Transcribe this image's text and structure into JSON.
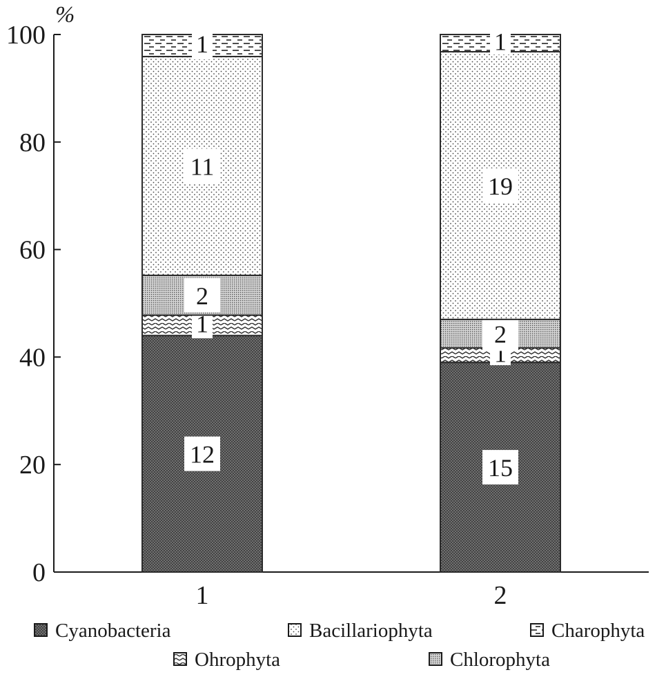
{
  "chart_data": {
    "type": "bar",
    "stacked": true,
    "unit_label": "%",
    "categories": [
      "1",
      "2"
    ],
    "ylim": [
      0,
      100
    ],
    "y_ticks": [
      0,
      20,
      40,
      60,
      80,
      100
    ],
    "series": [
      {
        "name": "Cyanobacteria",
        "pattern": "crosshatch",
        "values": [
          44,
          39
        ],
        "labels": [
          "12",
          "15"
        ]
      },
      {
        "name": "Ohrophyta",
        "pattern": "wave",
        "values": [
          3.8,
          2.7
        ],
        "labels": [
          "1",
          "1"
        ]
      },
      {
        "name": "Chlorophyta",
        "pattern": "fine-dots",
        "values": [
          7.4,
          5.3
        ],
        "labels": [
          "2",
          "2"
        ]
      },
      {
        "name": "Bacillariophyta",
        "pattern": "dots",
        "values": [
          40.7,
          49.8
        ],
        "labels": [
          "11",
          "19"
        ]
      },
      {
        "name": "Charophyta",
        "pattern": "dashes",
        "values": [
          4.1,
          3.2
        ],
        "labels": [
          "1",
          "1"
        ]
      }
    ],
    "legend": [
      {
        "name": "Cyanobacteria",
        "pattern": "crosshatch"
      },
      {
        "name": "Bacillariophyta",
        "pattern": "dots"
      },
      {
        "name": "Charophyta",
        "pattern": "dashes"
      },
      {
        "name": "Ohrophyta",
        "pattern": "wave"
      },
      {
        "name": "Chlorophyta",
        "pattern": "fine-dots"
      }
    ],
    "legend_placement": "bottom",
    "grid": false
  }
}
